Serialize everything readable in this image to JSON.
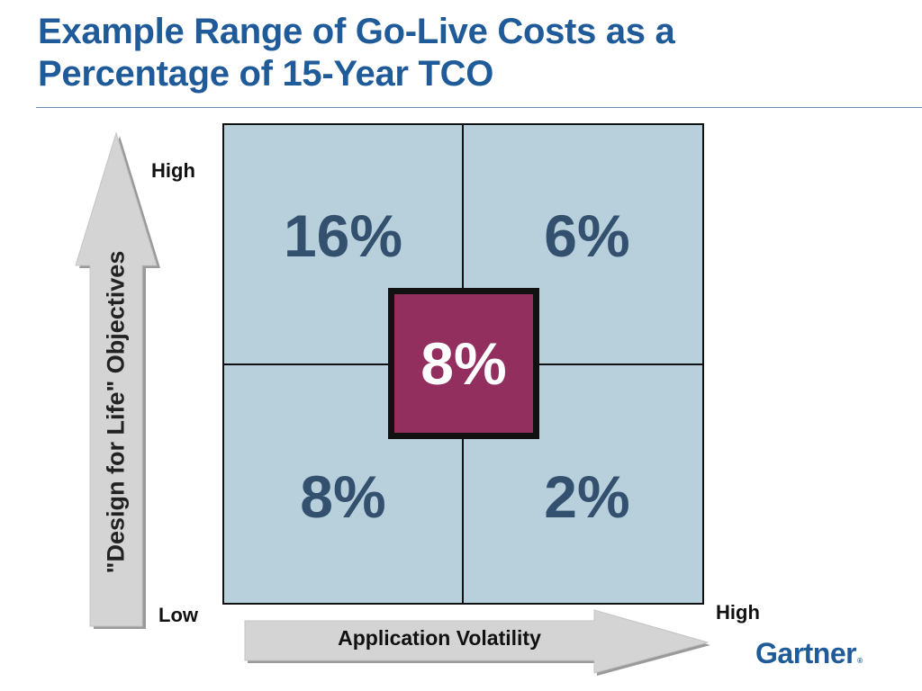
{
  "slide": {
    "title_line1": "Example Range of Go-Live Costs as a",
    "title_line2": "Percentage of 15-Year TCO"
  },
  "matrix": {
    "cells": {
      "top_left": "16%",
      "top_right": "6%",
      "bottom_left": "8%",
      "bottom_right": "2%",
      "center": "8%"
    },
    "cell_color": "#b8cfdc",
    "center_color": "#932f5f",
    "value_color": "#34506f"
  },
  "axes": {
    "y_label": "\"Design for Life\" Objectives",
    "y_high": "High",
    "origin_low": "Low",
    "x_label": "Application Volatility",
    "x_high": "High"
  },
  "brand": {
    "logo_text": "Gartner",
    "logo_mark": "®",
    "color": "#1f5a99"
  }
}
